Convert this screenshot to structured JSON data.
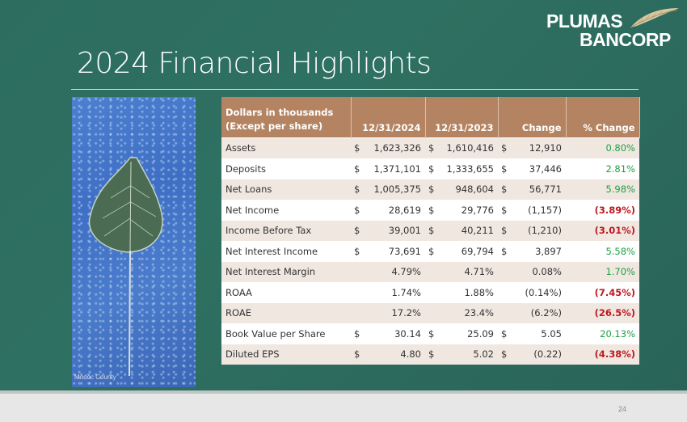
{
  "title": "2024 Financial Highlights",
  "logo": {
    "line1": "PLUMAS",
    "line2": "BANCORP"
  },
  "photo_caption": "Modoc County",
  "page_number": "24",
  "colors": {
    "positive": "#1fa043",
    "negative": "#c0181f",
    "header": "#b48462"
  },
  "table": {
    "header": {
      "label_line1": "Dollars in thousands",
      "label_line2": "(Except per share)",
      "col1": "12/31/2024",
      "col2": "12/31/2023",
      "col3": "Change",
      "col4": "% Change"
    },
    "rows": [
      {
        "label": "Assets",
        "d1": "$",
        "v1": "1,623,326",
        "d2": "$",
        "v2": "1,610,416",
        "d3": "$",
        "v3": "12,910",
        "pct": "0.80%",
        "sign": "pos"
      },
      {
        "label": "Deposits",
        "d1": "$",
        "v1": "1,371,101",
        "d2": "$",
        "v2": "1,333,655",
        "d3": "$",
        "v3": "37,446",
        "pct": "2.81%",
        "sign": "pos"
      },
      {
        "label": "Net Loans",
        "d1": "$",
        "v1": "1,005,375",
        "d2": "$",
        "v2": "948,604",
        "d3": "$",
        "v3": "56,771",
        "pct": "5.98%",
        "sign": "pos"
      },
      {
        "label": "Net Income",
        "d1": "$",
        "v1": "28,619",
        "d2": "$",
        "v2": "29,776",
        "d3": "$",
        "v3": "(1,157)",
        "pct": "(3.89%)",
        "sign": "neg"
      },
      {
        "label": "Income Before Tax",
        "d1": "$",
        "v1": "39,001",
        "d2": "$",
        "v2": "40,211",
        "d3": "$",
        "v3": "(1,210)",
        "pct": "(3.01%)",
        "sign": "neg"
      },
      {
        "label": "Net Interest Income",
        "d1": "$",
        "v1": "73,691",
        "d2": "$",
        "v2": "69,794",
        "d3": "$",
        "v3": "3,897",
        "pct": "5.58%",
        "sign": "pos"
      },
      {
        "label": "Net Interest Margin",
        "d1": "",
        "v1": "4.79%",
        "d2": "",
        "v2": "4.71%",
        "d3": "",
        "v3": "0.08%",
        "pct": "1.70%",
        "sign": "pos"
      },
      {
        "label": "ROAA",
        "d1": "",
        "v1": "1.74%",
        "d2": "",
        "v2": "1.88%",
        "d3": "",
        "v3": "(0.14%)",
        "pct": "(7.45%)",
        "sign": "neg"
      },
      {
        "label": "ROAE",
        "d1": "",
        "v1": "17.2%",
        "d2": "",
        "v2": "23.4%",
        "d3": "",
        "v3": "(6.2%)",
        "pct": "(26.5%)",
        "sign": "neg"
      },
      {
        "label": "Book Value per Share",
        "d1": "$",
        "v1": "30.14",
        "d2": "$",
        "v2": "25.09",
        "d3": "$",
        "v3": "5.05",
        "pct": "20.13%",
        "sign": "pos"
      },
      {
        "label": "Diluted EPS",
        "d1": "$",
        "v1": "4.80",
        "d2": "$",
        "v2": "5.02",
        "d3": "$",
        "v3": "(0.22)",
        "pct": "(4.38%)",
        "sign": "neg"
      }
    ]
  }
}
